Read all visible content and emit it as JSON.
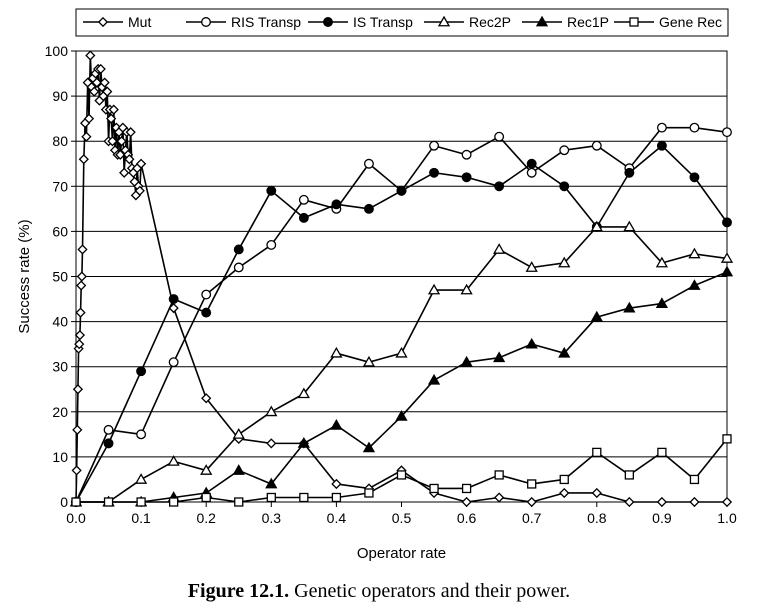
{
  "caption": {
    "label": "Figure 12.1.",
    "text": " Genetic operators and their power."
  },
  "chart_data": {
    "type": "line",
    "title": "",
    "xlabel": "Operator rate",
    "ylabel": "Success rate (%)",
    "xlim": [
      0.0,
      1.0
    ],
    "ylim": [
      0,
      100
    ],
    "xticks": [
      0.0,
      0.1,
      0.2,
      0.3,
      0.4,
      0.5,
      0.6,
      0.7,
      0.8,
      0.9,
      1.0
    ],
    "xtick_labels": [
      "0.0",
      "0.1",
      "0.2",
      "0.3",
      "0.4",
      "0.5",
      "0.6",
      "0.7",
      "0.8",
      "0.9",
      "1.0"
    ],
    "yticks": [
      0,
      10,
      20,
      30,
      40,
      50,
      60,
      70,
      80,
      90,
      100
    ],
    "ytick_labels": [
      "0",
      "10",
      "20",
      "30",
      "40",
      "50",
      "60",
      "70",
      "80",
      "90",
      "100"
    ],
    "grid": "horizontal",
    "legend_position": "top",
    "series": [
      {
        "name": "Mut",
        "marker": "diamond-open",
        "color": "#000000",
        "x": [
          0,
          0.001,
          0.002,
          0.003,
          0.004,
          0.005,
          0.006,
          0.007,
          0.008,
          0.009,
          0.01,
          0.012,
          0.014,
          0.016,
          0.018,
          0.02,
          0.022,
          0.024,
          0.026,
          0.028,
          0.03,
          0.032,
          0.034,
          0.036,
          0.038,
          0.04,
          0.042,
          0.044,
          0.046,
          0.048,
          0.05,
          0.052,
          0.054,
          0.056,
          0.058,
          0.06,
          0.062,
          0.064,
          0.066,
          0.068,
          0.07,
          0.072,
          0.074,
          0.076,
          0.078,
          0.08,
          0.082,
          0.084,
          0.086,
          0.088,
          0.09,
          0.092,
          0.094,
          0.096,
          0.098,
          0.1,
          0.15,
          0.2,
          0.25,
          0.3,
          0.35,
          0.4,
          0.45,
          0.5,
          0.55,
          0.6,
          0.65,
          0.7,
          0.75,
          0.8,
          0.85,
          0.9,
          0.95,
          1.0
        ],
        "y": [
          0,
          7,
          16,
          25,
          34,
          35,
          37,
          42,
          48,
          50,
          56,
          76,
          84,
          81,
          93,
          85,
          99,
          92,
          94,
          91,
          95,
          93,
          96,
          89,
          96,
          92,
          90,
          93,
          87,
          91,
          80,
          87,
          85,
          80,
          87,
          78,
          83,
          77,
          82,
          77,
          80,
          83,
          73,
          78,
          82,
          77,
          76,
          82,
          74,
          73,
          71,
          68,
          74,
          70,
          69,
          75,
          43,
          23,
          14,
          13,
          13,
          4,
          3,
          7,
          2,
          0,
          1,
          0,
          2,
          2,
          0,
          0,
          0,
          0
        ]
      },
      {
        "name": "RIS Transp",
        "marker": "circle-open",
        "color": "#000000",
        "x": [
          0.0,
          0.05,
          0.1,
          0.15,
          0.2,
          0.25,
          0.3,
          0.35,
          0.4,
          0.45,
          0.5,
          0.55,
          0.6,
          0.65,
          0.7,
          0.75,
          0.8,
          0.85,
          0.9,
          0.95,
          1.0
        ],
        "y": [
          0,
          16,
          15,
          31,
          46,
          52,
          57,
          67,
          65,
          75,
          69,
          79,
          77,
          81,
          73,
          78,
          79,
          74,
          83,
          83,
          82
        ]
      },
      {
        "name": "IS Transp",
        "marker": "circle-filled",
        "color": "#000000",
        "x": [
          0.0,
          0.05,
          0.1,
          0.15,
          0.2,
          0.25,
          0.3,
          0.35,
          0.4,
          0.45,
          0.5,
          0.55,
          0.6,
          0.65,
          0.7,
          0.75,
          0.8,
          0.85,
          0.9,
          0.95,
          1.0
        ],
        "y": [
          0,
          13,
          29,
          45,
          42,
          56,
          69,
          63,
          66,
          65,
          69,
          73,
          72,
          70,
          75,
          70,
          61,
          73,
          79,
          72,
          62
        ]
      },
      {
        "name": "Rec2P",
        "marker": "triangle-open",
        "color": "#000000",
        "x": [
          0.0,
          0.05,
          0.1,
          0.15,
          0.2,
          0.25,
          0.3,
          0.35,
          0.4,
          0.45,
          0.5,
          0.55,
          0.6,
          0.65,
          0.7,
          0.75,
          0.8,
          0.85,
          0.9,
          0.95,
          1.0
        ],
        "y": [
          0,
          0,
          5,
          9,
          7,
          15,
          20,
          24,
          33,
          31,
          33,
          47,
          47,
          56,
          52,
          53,
          61,
          61,
          53,
          55,
          54
        ]
      },
      {
        "name": "Rec1P",
        "marker": "triangle-filled",
        "color": "#000000",
        "x": [
          0.0,
          0.05,
          0.1,
          0.15,
          0.2,
          0.25,
          0.3,
          0.35,
          0.4,
          0.45,
          0.5,
          0.55,
          0.6,
          0.65,
          0.7,
          0.75,
          0.8,
          0.85,
          0.9,
          0.95,
          1.0
        ],
        "y": [
          0,
          0,
          0,
          1,
          2,
          7,
          4,
          13,
          17,
          12,
          19,
          27,
          31,
          32,
          35,
          33,
          41,
          43,
          44,
          48,
          51
        ]
      },
      {
        "name": "Gene Rec",
        "marker": "square-open",
        "color": "#000000",
        "x": [
          0.0,
          0.05,
          0.1,
          0.15,
          0.2,
          0.25,
          0.3,
          0.35,
          0.4,
          0.45,
          0.5,
          0.55,
          0.6,
          0.65,
          0.7,
          0.75,
          0.8,
          0.85,
          0.9,
          0.95,
          1.0
        ],
        "y": [
          0,
          0,
          0,
          0,
          1,
          0,
          1,
          1,
          1,
          2,
          6,
          3,
          3,
          6,
          4,
          5,
          11,
          6,
          11,
          5,
          14
        ]
      }
    ]
  }
}
